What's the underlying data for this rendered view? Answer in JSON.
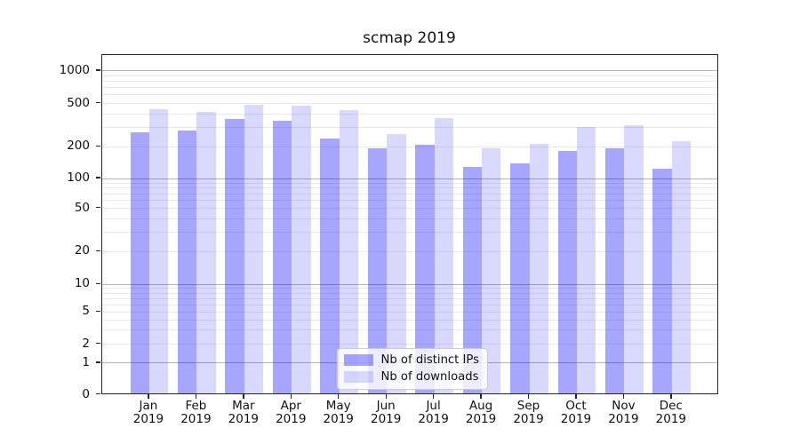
{
  "title": "scmap 2019",
  "chart_data": {
    "type": "bar",
    "title": "scmap 2019",
    "categories": [
      "Jan 2019",
      "Feb 2019",
      "Mar 2019",
      "Apr 2019",
      "May 2019",
      "Jun 2019",
      "Jul 2019",
      "Aug 2019",
      "Sep 2019",
      "Oct 2019",
      "Nov 2019",
      "Dec 2019"
    ],
    "x_tick_top": [
      "Jan",
      "Feb",
      "Mar",
      "Apr",
      "May",
      "Jun",
      "Jul",
      "Aug",
      "Sep",
      "Oct",
      "Nov",
      "Dec"
    ],
    "x_tick_bottom": "2019",
    "series": [
      {
        "name": "Nb of distinct IPs",
        "color": "rgba(0,0,255,0.35)",
        "values": [
          260,
          270,
          345,
          335,
          230,
          185,
          200,
          125,
          135,
          175,
          185,
          120
        ]
      },
      {
        "name": "Nb of downloads",
        "color": "rgba(0,0,255,0.15)",
        "values": [
          430,
          405,
          470,
          460,
          420,
          250,
          355,
          185,
          205,
          295,
          305,
          215
        ]
      }
    ],
    "yscale": "symlog",
    "y_ticks": [
      0,
      1,
      2,
      5,
      10,
      20,
      50,
      100,
      200,
      500,
      1000
    ],
    "ylim": [
      0,
      1415
    ],
    "xlabel": "",
    "ylabel": "",
    "grid": {
      "horizontal": true,
      "major_color": "#b4b4b4",
      "minor_color": "#e9e9e9"
    },
    "legend": {
      "position": "lower center",
      "labels": [
        "Nb of distinct IPs",
        "Nb of downloads"
      ]
    }
  },
  "colors": {
    "background": "#ffffff",
    "spine": "#262626",
    "text": "#151515",
    "legend_border": "#cccccc",
    "legend_background": "rgba(255,255,255,0.8)"
  }
}
